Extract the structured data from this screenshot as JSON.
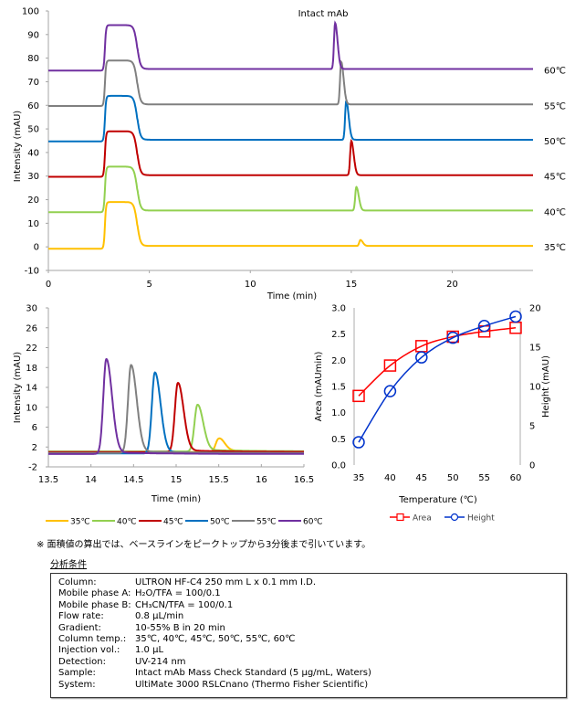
{
  "chart_data": [
    {
      "id": "overview",
      "type": "line",
      "title": "",
      "annotation": "Intact mAb",
      "xlabel": "Time (min)",
      "ylabel": "Intensity (mAU)",
      "xlim": [
        0,
        24
      ],
      "ylim": [
        -10,
        100
      ],
      "xticks": [
        0,
        5,
        10,
        15,
        20
      ],
      "yticks": [
        -10,
        0,
        10,
        20,
        30,
        40,
        50,
        60,
        70,
        80,
        90,
        100
      ],
      "grid": false,
      "series": [
        {
          "name": "35℃",
          "color": "#FFC000",
          "baseline": 0,
          "plateau": 19,
          "peak_time": 15.45,
          "peak_height": 2.5
        },
        {
          "name": "40℃",
          "color": "#92D050",
          "baseline": 15,
          "plateau": 34,
          "peak_time": 15.25,
          "peak_height": 10
        },
        {
          "name": "45℃",
          "color": "#C00000",
          "baseline": 30,
          "plateau": 49,
          "peak_time": 15.0,
          "peak_height": 14.5
        },
        {
          "name": "50℃",
          "color": "#0070C0",
          "baseline": 45,
          "plateau": 64,
          "peak_time": 14.75,
          "peak_height": 16.5
        },
        {
          "name": "55℃",
          "color": "#808080",
          "baseline": 60,
          "plateau": 79,
          "peak_time": 14.5,
          "peak_height": 18
        },
        {
          "name": "60℃",
          "color": "#7030A0",
          "baseline": 75,
          "plateau": 94,
          "peak_time": 14.2,
          "peak_height": 19.5
        }
      ],
      "plateau_start": 2.8,
      "plateau_end": 4.4,
      "legend": "right-of-each-trace"
    },
    {
      "id": "zoomed",
      "type": "line",
      "title": "",
      "xlabel": "Time (min)",
      "ylabel": "Intensity (mAU)",
      "xlim": [
        13.5,
        16.5
      ],
      "ylim": [
        -2,
        30
      ],
      "xticks": [
        13.5,
        14,
        14.5,
        15,
        15.5,
        16,
        16.5
      ],
      "yticks": [
        -2,
        2,
        6,
        10,
        14,
        18,
        22,
        26,
        30
      ],
      "grid": false,
      "series": [
        {
          "name": "35℃",
          "color": "#FFC000",
          "peak_time": 15.5,
          "peak_height": 3.7,
          "baseline": 1.0
        },
        {
          "name": "40℃",
          "color": "#92D050",
          "peak_time": 15.25,
          "peak_height": 10.5,
          "baseline": 1.1
        },
        {
          "name": "45℃",
          "color": "#C00000",
          "peak_time": 15.02,
          "peak_height": 14.9,
          "baseline": 1.0
        },
        {
          "name": "50℃",
          "color": "#0070C0",
          "peak_time": 14.75,
          "peak_height": 17.0,
          "baseline": 0.7
        },
        {
          "name": "55℃",
          "color": "#808080",
          "peak_time": 14.47,
          "peak_height": 18.5,
          "baseline": 0.8
        },
        {
          "name": "60℃",
          "color": "#7030A0",
          "peak_time": 14.18,
          "peak_height": 19.7,
          "baseline": 0.6
        }
      ],
      "legend": "bottom"
    },
    {
      "id": "temperature",
      "type": "scatter",
      "title": "",
      "xlabel": "Temperature (℃)",
      "ylabel": "Area (mAUmin)",
      "y2label": "Height (mAU)",
      "x": [
        35,
        40,
        45,
        50,
        55,
        60
      ],
      "xlim": [
        35,
        60
      ],
      "ylim": [
        0,
        3.0
      ],
      "y2lim": [
        0,
        20
      ],
      "xticks": [
        35,
        40,
        45,
        50,
        55,
        60
      ],
      "yticks": [
        "0.0",
        "0.5",
        "1.0",
        "1.5",
        "2.0",
        "2.5",
        "3.0"
      ],
      "y2ticks": [
        0,
        5,
        10,
        15,
        20
      ],
      "grid": false,
      "series": [
        {
          "name": "Area",
          "axis": "left",
          "marker": "square",
          "color": "#FF0000",
          "values": [
            1.32,
            1.9,
            2.27,
            2.45,
            2.55,
            2.62
          ]
        },
        {
          "name": "Height",
          "axis": "right",
          "marker": "circle",
          "color": "#0033CC",
          "values": [
            2.9,
            9.4,
            13.7,
            16.2,
            17.7,
            18.9
          ]
        }
      ],
      "legend": "bottom"
    }
  ],
  "note": "※ 面積値の算出では、ベースラインをピークトップから3分後まで引いています。",
  "conditions": {
    "title": "分析条件",
    "rows": [
      {
        "label": "Column:",
        "value": "ULTRON HF-C4 250 mm L x 0.1 mm I.D."
      },
      {
        "label": "Mobile phase A:",
        "value": "H₂O/TFA = 100/0.1"
      },
      {
        "label": "Mobile phase B:",
        "value": "CH₃CN/TFA = 100/0.1"
      },
      {
        "label": "Flow rate:",
        "value": "0.8 µL/min"
      },
      {
        "label": "Gradient:",
        "value": "10-55% B in 20 min"
      },
      {
        "label": "Column temp.:",
        "value": "35℃, 40℃, 45℃, 50℃, 55℃, 60℃"
      },
      {
        "label": "Injection vol.:",
        "value": "1.0 µL"
      },
      {
        "label": "Detection:",
        "value": "UV-214 nm"
      },
      {
        "label": "Sample:",
        "value": "Intact mAb Mass Check Standard (5 µg/mL, Waters)"
      },
      {
        "label": "System:",
        "value": "UltiMate 3000 RSLCnano  (Thermo Fisher Scientific)"
      }
    ]
  }
}
